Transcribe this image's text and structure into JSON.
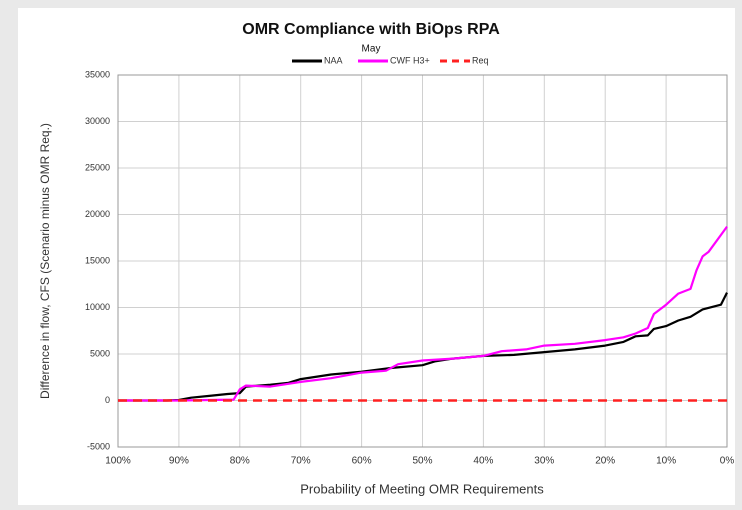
{
  "chart_data": {
    "type": "line",
    "title": "OMR Compliance with BiOps RPA",
    "subtitle": "May",
    "x_label": "Probability of Meeting OMR Requirements",
    "y_label": "Difference in flow, CFS (Scenario minus OMR Req.)",
    "xlim": [
      100,
      0
    ],
    "xticks": [
      {
        "value": 100,
        "label": "100%"
      },
      {
        "value": 90,
        "label": "90%"
      },
      {
        "value": 80,
        "label": "80%"
      },
      {
        "value": 70,
        "label": "70%"
      },
      {
        "value": 60,
        "label": "60%"
      },
      {
        "value": 50,
        "label": "50%"
      },
      {
        "value": 40,
        "label": "40%"
      },
      {
        "value": 30,
        "label": "30%"
      },
      {
        "value": 20,
        "label": "20%"
      },
      {
        "value": 10,
        "label": "10%"
      },
      {
        "value": 0,
        "label": "0%"
      }
    ],
    "ylim": [
      -5000,
      35000
    ],
    "yticks": [
      -5000,
      0,
      5000,
      10000,
      15000,
      20000,
      25000,
      30000,
      35000
    ],
    "grid": true,
    "legend": "top",
    "series": [
      {
        "name": "NAA",
        "color": "#000000",
        "style": "solid",
        "x": [
          100,
          92,
          90,
          88,
          85,
          82,
          80,
          79,
          75,
          72,
          70,
          65,
          60,
          55,
          50,
          48,
          45,
          40,
          35,
          30,
          25,
          20,
          17,
          15,
          13,
          12,
          10,
          8,
          6,
          4,
          1,
          0
        ],
        "values": [
          0,
          0,
          50,
          300,
          500,
          700,
          800,
          1500,
          1700,
          1900,
          2300,
          2800,
          3100,
          3500,
          3800,
          4200,
          4500,
          4800,
          4900,
          5200,
          5500,
          5900,
          6300,
          6900,
          7000,
          7700,
          8000,
          8600,
          9000,
          9800,
          10300,
          11600
        ]
      },
      {
        "name": "CWF H3+",
        "color": "#ff00ff",
        "style": "solid",
        "x": [
          100,
          90,
          81,
          80,
          79,
          75,
          72,
          70,
          65,
          60,
          56,
          54,
          50,
          45,
          40,
          37,
          33,
          30,
          25,
          20,
          17,
          15,
          13,
          12,
          10,
          8,
          6,
          5,
          4,
          3,
          1,
          0
        ],
        "values": [
          0,
          0,
          100,
          1200,
          1600,
          1500,
          1800,
          2000,
          2400,
          3000,
          3200,
          3900,
          4300,
          4500,
          4800,
          5300,
          5500,
          5900,
          6100,
          6500,
          6800,
          7200,
          7800,
          9300,
          10300,
          11500,
          12000,
          14000,
          15500,
          16000,
          17800,
          18700
        ]
      },
      {
        "name": "Req",
        "color": "#ff2020",
        "style": "dashed",
        "x": [
          100,
          0
        ],
        "values": [
          0,
          0
        ]
      }
    ]
  }
}
